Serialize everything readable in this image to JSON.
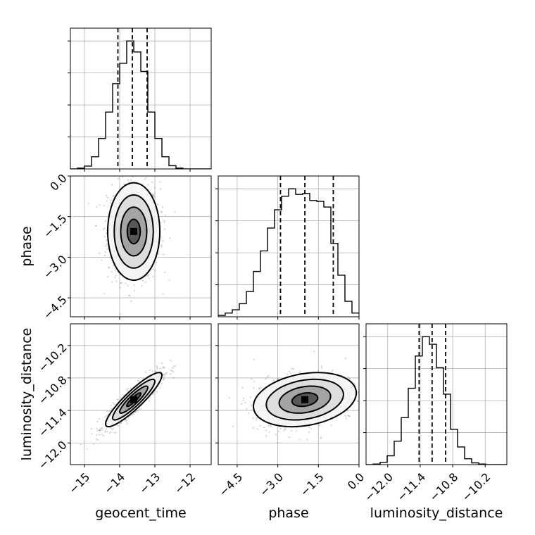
{
  "chart_data": {
    "type": "corner",
    "parameters": [
      "geocent_time",
      "phase",
      "luminosity_distance"
    ],
    "axis_labels": {
      "geocent_time": "geocent_time",
      "phase": "phase",
      "luminosity_distance": "luminosity_distance"
    },
    "ranges": {
      "geocent_time": [
        -15.4,
        -11.4
      ],
      "phase": [
        -5.2,
        0.0
      ],
      "luminosity_distance": [
        -12.4,
        -9.8
      ]
    },
    "ticks": {
      "geocent_time": [
        -15,
        -14,
        -13,
        -12
      ],
      "phase": [
        -4.5,
        -3.0,
        -1.5,
        0.0
      ],
      "luminosity_distance": [
        -12.0,
        -11.4,
        -10.8,
        -10.2
      ]
    },
    "tick_labels": {
      "geocent_time": [
        "−15",
        "−14",
        "−13",
        "−12"
      ],
      "phase": [
        "−4.5",
        "−3.0",
        "−1.5",
        "0.0"
      ],
      "luminosity_distance": [
        "−12.0",
        "−11.4",
        "−10.8",
        "−10.2"
      ]
    },
    "quantiles": {
      "geocent_time": [
        -14.05,
        -13.64,
        -13.22
      ],
      "phase": [
        -2.9,
        -2.0,
        -0.95
      ],
      "luminosity_distance": [
        -11.42,
        -11.18,
        -10.93
      ]
    },
    "histograms": {
      "geocent_time": {
        "bin_edges": [
          -15.4,
          -15.2,
          -15.0,
          -14.8,
          -14.6,
          -14.4,
          -14.2,
          -14.0,
          -13.8,
          -13.6,
          -13.4,
          -13.2,
          -13.0,
          -12.8,
          -12.6,
          -12.4,
          -12.2,
          -12.0,
          -11.8,
          -11.6,
          -11.4
        ],
        "counts": [
          0,
          2,
          7,
          30,
          75,
          140,
          210,
          260,
          315,
          288,
          240,
          140,
          75,
          30,
          8,
          2,
          0,
          0,
          0,
          0
        ]
      },
      "phase": {
        "bin_edges": [
          -5.2,
          -4.94,
          -4.68,
          -4.42,
          -4.16,
          -3.9,
          -3.64,
          -3.38,
          -3.12,
          -2.86,
          -2.6,
          -2.34,
          -2.08,
          -1.82,
          -1.56,
          -1.3,
          -1.04,
          -0.78,
          -0.52,
          -0.26,
          0.0
        ],
        "counts": [
          3,
          8,
          15,
          28,
          54,
          97,
          141,
          190,
          229,
          258,
          274,
          262,
          264,
          249,
          247,
          235,
          157,
          89,
          33,
          8
        ]
      },
      "luminosity_distance": {
        "bin_edges": [
          -12.4,
          -12.27,
          -12.14,
          -12.01,
          -11.88,
          -11.75,
          -11.62,
          -11.49,
          -11.36,
          -11.23,
          -11.1,
          -10.97,
          -10.84,
          -10.71,
          -10.58,
          -10.45,
          -10.32,
          -10.19,
          -10.06,
          -9.93,
          -9.8
        ],
        "counts": [
          0,
          1,
          4,
          15,
          40,
          80,
          130,
          185,
          218,
          205,
          165,
          120,
          60,
          30,
          10,
          3,
          1,
          0,
          0,
          0
        ]
      }
    },
    "pairs": [
      {
        "x": "geocent_time",
        "y": "phase",
        "x_center": -13.6,
        "y_center": -2.05,
        "sx": 0.37,
        "sy": 0.9,
        "rho": 0.0
      },
      {
        "x": "geocent_time",
        "y": "luminosity_distance",
        "x_center": -13.6,
        "y_center": -11.2,
        "sx": 0.4,
        "sy": 0.25,
        "rho": 0.9
      },
      {
        "x": "phase",
        "y": "luminosity_distance",
        "x_center": -2.0,
        "y_center": -11.2,
        "sx": 0.95,
        "sy": 0.25,
        "rho": 0.25
      }
    ],
    "grid": true,
    "colors": {
      "line": "#000000",
      "grid": "#b0b0b0",
      "points": "#7f7f7f"
    }
  }
}
